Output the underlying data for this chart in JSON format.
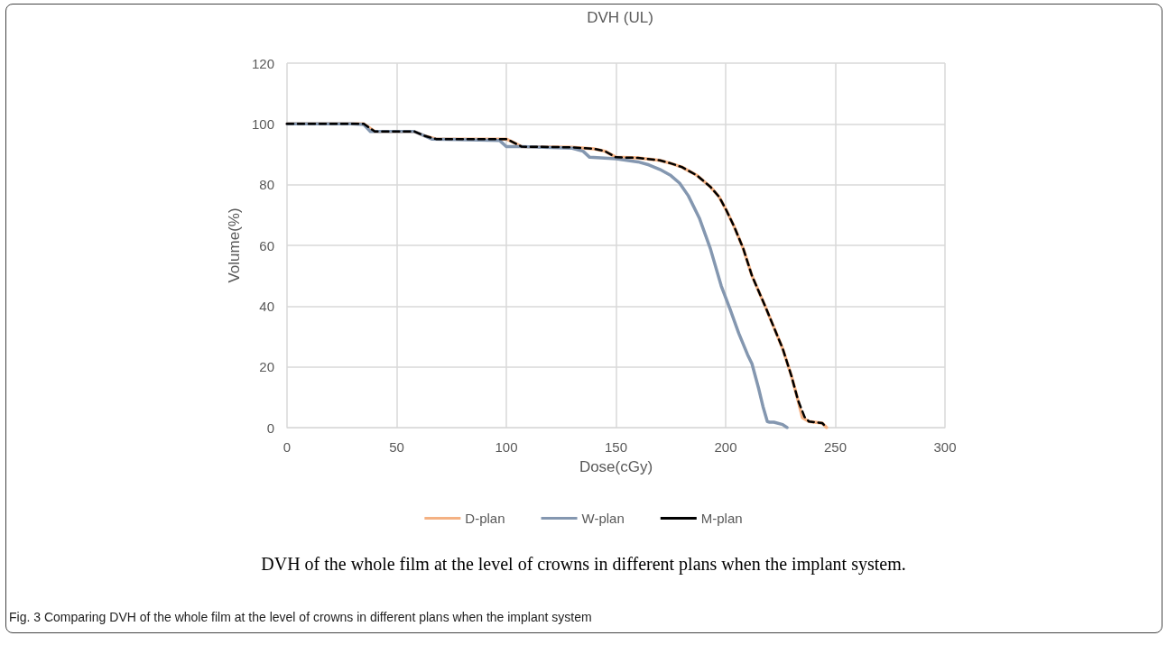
{
  "chart_data": {
    "type": "line",
    "title": "DVH (UL)",
    "xlabel": "Dose(cGy)",
    "ylabel": "Volume(%)",
    "xlim": [
      0,
      300
    ],
    "xticks": [
      0,
      50,
      100,
      150,
      200,
      250,
      300
    ],
    "ylim": [
      0,
      120
    ],
    "yticks": [
      0,
      20,
      40,
      60,
      80,
      100,
      120
    ],
    "grid": true,
    "legend": "bottom",
    "marker": "none",
    "series": [
      {
        "name": "D-plan",
        "color": "#f4b183",
        "line_style": "solid",
        "x": [
          0,
          30,
          35,
          40,
          58,
          63,
          68,
          100,
          103,
          107,
          130,
          140,
          145,
          150,
          160,
          170,
          175,
          180,
          187,
          193,
          197,
          200,
          204,
          208,
          212,
          218,
          222,
          226,
          230,
          233,
          235,
          238,
          244,
          246
        ],
        "values": [
          100,
          100,
          100,
          97.5,
          97.5,
          96,
          95,
          95,
          94,
          92.5,
          92.3,
          91.8,
          91,
          89,
          88.8,
          88,
          87,
          85.8,
          83,
          79.3,
          76,
          72,
          66,
          59,
          50,
          40,
          33,
          26,
          17,
          9,
          3.3,
          2,
          1.5,
          0
        ]
      },
      {
        "name": "W-plan",
        "color": "#8497b0",
        "line_style": "solid",
        "x": [
          0,
          30,
          35,
          38,
          58,
          63,
          66,
          97,
          100,
          107,
          130,
          135,
          138,
          150,
          160,
          165,
          170,
          175,
          179,
          183,
          188,
          193,
          198,
          202,
          206,
          210,
          212,
          215,
          217,
          219,
          220,
          222,
          226,
          228
        ],
        "values": [
          100,
          100,
          99.8,
          97.5,
          97.5,
          96,
          95,
          94.5,
          92.5,
          92.5,
          92,
          91,
          89,
          88.5,
          87.5,
          86.5,
          85,
          83,
          80.5,
          76.3,
          69,
          59,
          46.6,
          39,
          31,
          24,
          21,
          13,
          7,
          2,
          1.8,
          1.8,
          1,
          0
        ]
      },
      {
        "name": "M-plan",
        "color": "#000000",
        "line_style": "dashed",
        "x": [
          0,
          30,
          35,
          40,
          58,
          63,
          68,
          100,
          103,
          107,
          130,
          140,
          145,
          150,
          160,
          170,
          175,
          180,
          187,
          193,
          197,
          200,
          204,
          208,
          212,
          218,
          222,
          226,
          230,
          233,
          236,
          238,
          244,
          246
        ],
        "values": [
          100,
          100,
          100,
          97.5,
          97.5,
          96,
          95,
          95,
          94,
          92.5,
          92.3,
          91.8,
          91,
          89,
          88.8,
          88,
          87,
          85.8,
          83,
          79.3,
          76,
          72,
          66,
          59,
          50,
          40,
          33,
          26,
          17,
          9,
          3.5,
          2,
          1.5,
          0
        ]
      }
    ],
    "annotations": [
      "DVH of the whole film at the level of crowns in different plans when the implant system.",
      "Fig. 3 Comparing DVH of the whole film at the level of crowns in different plans when the implant system"
    ]
  }
}
